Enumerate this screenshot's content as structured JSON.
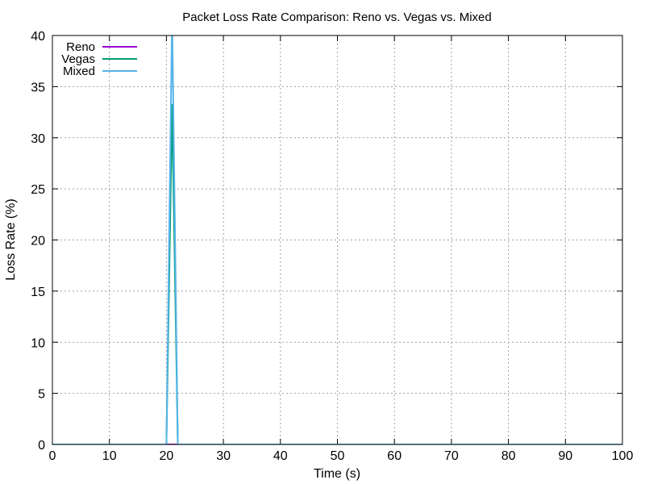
{
  "chart_data": {
    "type": "line",
    "title": "Packet Loss Rate Comparison: Reno vs. Vegas vs. Mixed",
    "xlabel": "Time (s)",
    "ylabel": "Loss Rate (%)",
    "xlim": [
      0,
      100
    ],
    "ylim": [
      0,
      40
    ],
    "xticks": [
      0,
      10,
      20,
      30,
      40,
      50,
      60,
      70,
      80,
      90,
      100
    ],
    "yticks": [
      0,
      5,
      10,
      15,
      20,
      25,
      30,
      35,
      40
    ],
    "grid": true,
    "legend_position": "top-left",
    "series": [
      {
        "name": "Reno",
        "color": "#9400d3",
        "points": [
          [
            0,
            0
          ],
          [
            20,
            0
          ],
          [
            21,
            0
          ],
          [
            22,
            0
          ],
          [
            100,
            0
          ]
        ]
      },
      {
        "name": "Vegas",
        "color": "#009e73",
        "points": [
          [
            0,
            0
          ],
          [
            20,
            0
          ],
          [
            21,
            33.3
          ],
          [
            22,
            0
          ],
          [
            100,
            0
          ]
        ]
      },
      {
        "name": "Mixed",
        "color": "#56b4e9",
        "points": [
          [
            0,
            0
          ],
          [
            20,
            0
          ],
          [
            21,
            42
          ],
          [
            22,
            0
          ],
          [
            100,
            0
          ]
        ]
      }
    ]
  }
}
